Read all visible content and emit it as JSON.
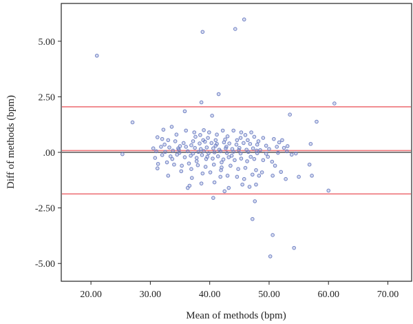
{
  "chart_data": {
    "type": "scatter",
    "xlabel": "Mean of methods (bpm)",
    "ylabel": "Diff of methods (bpm)",
    "xlim": [
      15,
      74
    ],
    "ylim": [
      -5.8,
      6.7
    ],
    "x_ticks": [
      20,
      30,
      40,
      50,
      60,
      70
    ],
    "x_tick_labels": [
      "20.00",
      "30.00",
      "40.00",
      "50.00",
      "60.00",
      "70.00"
    ],
    "y_ticks": [
      5,
      2.5,
      0,
      -2.5,
      -5
    ],
    "y_tick_labels": [
      "5.00",
      "2.50",
      ".00",
      "-2.50",
      "-5.00"
    ],
    "grid": false,
    "reference_lines": {
      "zero": 0,
      "mean_difference": 0.08,
      "upper_limit": 2.05,
      "lower_limit": -1.87
    },
    "colors": {
      "points": "#6f80c4",
      "limit_lines": "#ee7378",
      "zero_line": "#555555",
      "axis": "#222222"
    },
    "points": [
      [
        21.0,
        4.35
      ],
      [
        25.3,
        -0.08
      ],
      [
        27.0,
        1.35
      ],
      [
        38.8,
        5.42
      ],
      [
        44.3,
        5.55
      ],
      [
        45.8,
        5.98
      ],
      [
        38.6,
        2.25
      ],
      [
        41.5,
        2.62
      ],
      [
        61.0,
        2.2
      ],
      [
        35.8,
        1.85
      ],
      [
        40.4,
        1.65
      ],
      [
        53.5,
        1.7
      ],
      [
        58.0,
        1.38
      ],
      [
        32.2,
        1.02
      ],
      [
        33.6,
        1.15
      ],
      [
        36.0,
        0.98
      ],
      [
        39.0,
        1.0
      ],
      [
        42.2,
        0.98
      ],
      [
        44.0,
        0.98
      ],
      [
        45.3,
        0.9
      ],
      [
        47.0,
        0.9
      ],
      [
        37.6,
        0.7
      ],
      [
        38.4,
        0.78
      ],
      [
        39.7,
        0.65
      ],
      [
        41.2,
        0.8
      ],
      [
        43.0,
        0.72
      ],
      [
        45.2,
        0.65
      ],
      [
        46.0,
        0.78
      ],
      [
        47.5,
        0.7
      ],
      [
        49.0,
        0.65
      ],
      [
        50.8,
        0.6
      ],
      [
        52.2,
        0.55
      ],
      [
        31.2,
        0.68
      ],
      [
        32.0,
        0.6
      ],
      [
        33.0,
        0.55
      ],
      [
        34.2,
        0.5
      ],
      [
        35.6,
        0.42
      ],
      [
        37.2,
        0.5
      ],
      [
        38.3,
        0.4
      ],
      [
        39.2,
        0.48
      ],
      [
        40.3,
        0.42
      ],
      [
        41.2,
        0.38
      ],
      [
        42.4,
        0.45
      ],
      [
        43.3,
        0.4
      ],
      [
        44.5,
        0.35
      ],
      [
        45.7,
        0.42
      ],
      [
        46.8,
        0.38
      ],
      [
        48.0,
        0.35
      ],
      [
        49.5,
        0.3
      ],
      [
        51.3,
        0.25
      ],
      [
        53.1,
        0.28
      ],
      [
        57.0,
        0.38
      ],
      [
        30.5,
        0.18
      ],
      [
        31.8,
        0.25
      ],
      [
        33.2,
        0.22
      ],
      [
        34.7,
        0.18
      ],
      [
        36.0,
        0.25
      ],
      [
        37.5,
        0.2
      ],
      [
        38.5,
        0.15
      ],
      [
        39.5,
        0.22
      ],
      [
        40.6,
        0.18
      ],
      [
        41.6,
        0.12
      ],
      [
        42.7,
        0.18
      ],
      [
        43.8,
        0.15
      ],
      [
        45.0,
        0.2
      ],
      [
        46.2,
        0.12
      ],
      [
        47.3,
        0.18
      ],
      [
        48.5,
        0.1
      ],
      [
        50.0,
        0.15
      ],
      [
        52.5,
        0.2
      ],
      [
        53.0,
        0.05
      ],
      [
        31.0,
        0.05
      ],
      [
        32.5,
        0.02
      ],
      [
        33.8,
        0.08
      ],
      [
        34.9,
        -0.02
      ],
      [
        36.3,
        0.05
      ],
      [
        37.2,
        -0.05
      ],
      [
        38.1,
        0.02
      ],
      [
        39.0,
        0.06
      ],
      [
        39.8,
        -0.04
      ],
      [
        40.8,
        0.0
      ],
      [
        41.8,
        0.05
      ],
      [
        42.9,
        -0.03
      ],
      [
        44.0,
        0.03
      ],
      [
        45.2,
        -0.05
      ],
      [
        46.5,
        0.02
      ],
      [
        48.0,
        -0.04
      ],
      [
        49.5,
        -0.06
      ],
      [
        51.5,
        -0.02
      ],
      [
        54.5,
        -0.05
      ],
      [
        32.0,
        -0.12
      ],
      [
        33.4,
        -0.18
      ],
      [
        34.5,
        -0.1
      ],
      [
        35.8,
        -0.22
      ],
      [
        36.8,
        -0.15
      ],
      [
        37.8,
        -0.25
      ],
      [
        38.7,
        -0.12
      ],
      [
        39.6,
        -0.2
      ],
      [
        40.5,
        -0.28
      ],
      [
        41.4,
        -0.18
      ],
      [
        42.3,
        -0.32
      ],
      [
        43.2,
        -0.22
      ],
      [
        44.2,
        -0.35
      ],
      [
        45.3,
        -0.28
      ],
      [
        46.3,
        -0.4
      ],
      [
        47.5,
        -0.3
      ],
      [
        49.0,
        -0.35
      ],
      [
        50.5,
        -0.42
      ],
      [
        31.3,
        -0.52
      ],
      [
        32.8,
        -0.45
      ],
      [
        34.0,
        -0.55
      ],
      [
        35.3,
        -0.6
      ],
      [
        36.5,
        -0.5
      ],
      [
        38.0,
        -0.58
      ],
      [
        39.3,
        -0.65
      ],
      [
        40.7,
        -0.55
      ],
      [
        42.0,
        -0.68
      ],
      [
        43.5,
        -0.6
      ],
      [
        44.8,
        -0.75
      ],
      [
        46.0,
        -0.7
      ],
      [
        47.8,
        -0.8
      ],
      [
        48.8,
        -0.9
      ],
      [
        52.0,
        -0.88
      ],
      [
        31.2,
        -0.72
      ],
      [
        35.2,
        -0.85
      ],
      [
        33.0,
        -1.05
      ],
      [
        37.0,
        -1.15
      ],
      [
        38.8,
        -0.95
      ],
      [
        41.8,
        -1.1
      ],
      [
        43.0,
        -1.05
      ],
      [
        44.6,
        -1.1
      ],
      [
        45.8,
        -1.2
      ],
      [
        47.2,
        -1.0
      ],
      [
        48.3,
        -1.05
      ],
      [
        50.6,
        -1.05
      ],
      [
        52.8,
        -1.2
      ],
      [
        55.0,
        -1.1
      ],
      [
        57.2,
        -1.05
      ],
      [
        36.6,
        -1.5
      ],
      [
        38.6,
        -1.4
      ],
      [
        40.8,
        -1.35
      ],
      [
        43.2,
        -1.6
      ],
      [
        45.5,
        -1.45
      ],
      [
        46.7,
        -1.55
      ],
      [
        47.8,
        -1.45
      ],
      [
        36.3,
        -1.6
      ],
      [
        42.5,
        -1.75
      ],
      [
        56.8,
        -0.55
      ],
      [
        60.0,
        -1.72
      ],
      [
        40.6,
        -2.05
      ],
      [
        47.6,
        -2.2
      ],
      [
        47.2,
        -3.0
      ],
      [
        50.6,
        -3.72
      ],
      [
        54.2,
        -4.3
      ],
      [
        50.2,
        -4.68
      ],
      [
        34.8,
        0.12
      ],
      [
        36.9,
        0.32
      ],
      [
        38.9,
        0.55
      ],
      [
        41.0,
        0.55
      ],
      [
        42.8,
        0.25
      ],
      [
        44.6,
        0.55
      ],
      [
        30.8,
        -0.25
      ],
      [
        32.4,
        0.35
      ],
      [
        35.0,
        0.28
      ],
      [
        37.8,
        -0.4
      ],
      [
        39.9,
        0.9
      ],
      [
        43.7,
        -0.15
      ],
      [
        46.4,
        0.55
      ],
      [
        48.2,
        0.5
      ],
      [
        49.8,
        -0.2
      ],
      [
        51.7,
        0.45
      ],
      [
        33.7,
        -0.3
      ],
      [
        36.9,
        -0.75
      ],
      [
        40.1,
        -0.9
      ],
      [
        41.0,
        0.3
      ],
      [
        42.0,
        -0.45
      ],
      [
        44.9,
        0.1
      ],
      [
        46.9,
        -0.2
      ],
      [
        51.0,
        -0.6
      ],
      [
        53.8,
        -0.1
      ],
      [
        34.4,
        0.8
      ],
      [
        37.4,
        0.9
      ],
      [
        42.6,
        0.58
      ],
      [
        47.9,
        0.08
      ],
      [
        39.4,
        -0.3
      ],
      [
        41.9,
        -0.8
      ]
    ]
  }
}
